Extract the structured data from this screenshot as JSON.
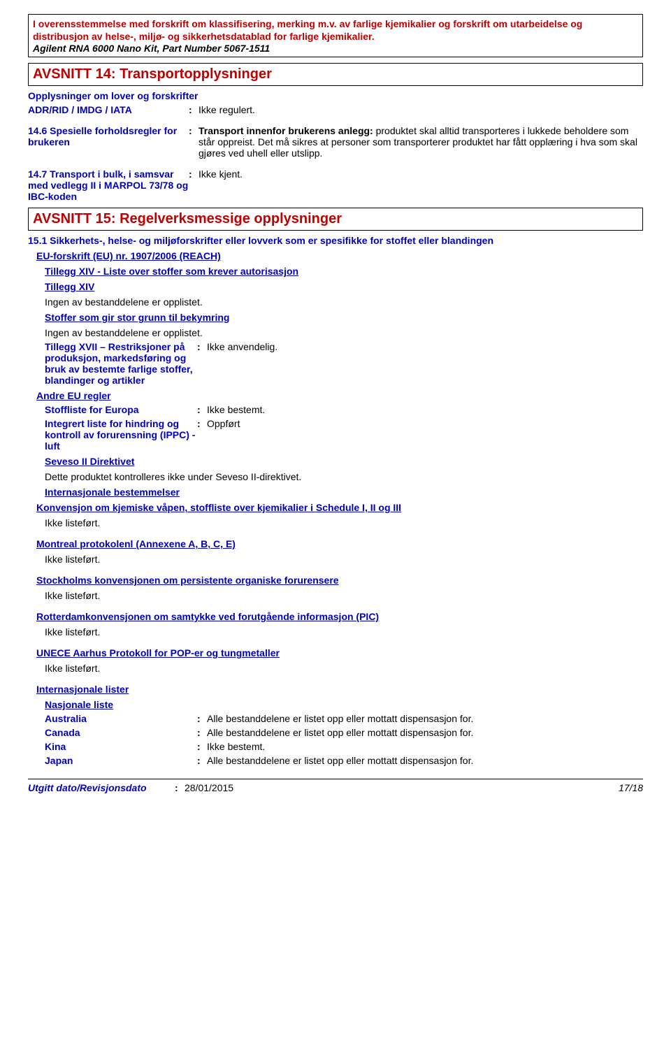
{
  "header": {
    "line1": "I overensstemmelse med forskrift om klassifisering, merking m.v. av farlige kjemikalier og forskrift om utarbeidelse og distribusjon av helse-, miljø- og sikkerhetsdatablad for farlige kjemikalier.",
    "line2": "Agilent RNA 6000 Nano Kit, Part Number 5067-1511"
  },
  "section14": {
    "title": "AVSNITT 14: Transportopplysninger",
    "sub1": "Opplysninger om lover og forskrifter",
    "adr_label": "ADR/RID / IMDG / IATA",
    "adr_value": "Ikke regulert.",
    "spec_label": "14.6 Spesielle forholdsregler for brukeren",
    "spec_bold": "Transport innenfor brukerens anlegg:",
    "spec_rest": " produktet skal alltid transporteres i lukkede beholdere som står oppreist. Det må sikres at personer som transporterer produktet har fått opplæring i hva som skal gjøres ved uhell eller utslipp.",
    "bulk_label": "14.7 Transport i bulk, i samsvar med vedlegg II i MARPOL 73/78 og IBC-koden",
    "bulk_value": "Ikke kjent."
  },
  "section15": {
    "title": "AVSNITT 15: Regelverksmessige opplysninger",
    "sub1": "15.1 Sikkerhets-, helse- og miljøforskrifter eller lovverk som er spesifikke for stoffet eller blandingen",
    "eu_reg": "EU-forskrift (EU) nr. 1907/2006 (REACH)",
    "annex14": "Tillegg XIV - Liste over stoffer som krever autorisasjon",
    "annex14_short": "Tillegg XIV",
    "none_listed": "Ingen av bestanddelene er opplistet.",
    "svhc": "Stoffer som gir stor grunn til bekymring",
    "annex17_label": "Tillegg XVII – Restriksjoner på produksjon, markedsføring og bruk av bestemte farlige stoffer, blandinger og artikler",
    "annex17_value": "Ikke anvendelig.",
    "other_eu": "Andre EU regler",
    "stoffliste_label": "Stoffliste for Europa",
    "stoffliste_value": "Ikke bestemt.",
    "ippc_label": "Integrert liste for hindring og kontroll av forurensning (IPPC) - luft",
    "ippc_value": "Oppført",
    "seveso": "Seveso II Direktivet",
    "seveso_text": "Dette produktet kontrolleres ikke under Seveso II-direktivet.",
    "intl": "Internasjonale bestemmelser",
    "cwc": "Konvensjon om kjemiske våpen, stoffliste over kjemikalier i Schedule I, II og III",
    "not_listed": "Ikke listeført.",
    "montreal": "Montreal protokolenl (Annexene A, B, C, E)",
    "stockholm": "Stockholms konvensjonen om persistente organiske forurensere",
    "rotterdam": "Rotterdamkonvensjonen om samtykke ved forutgående informasjon (PIC)",
    "unece": "UNECE Aarhus Protokoll for POP-er og tungmetaller",
    "intl_lists": "Internasjonale lister",
    "national": "Nasjonale liste",
    "countries": [
      {
        "name": "Australia",
        "value": "Alle bestanddelene er listet opp eller mottatt dispensasjon for."
      },
      {
        "name": "Canada",
        "value": "Alle bestanddelene er listet opp eller mottatt dispensasjon for."
      },
      {
        "name": "Kina",
        "value": "Ikke bestemt."
      },
      {
        "name": "Japan",
        "value": "Alle bestanddelene er listet opp eller mottatt dispensasjon for."
      }
    ]
  },
  "footer": {
    "label": "Utgitt dato/Revisjonsdato",
    "date": "28/01/2015",
    "page": "17/18"
  }
}
